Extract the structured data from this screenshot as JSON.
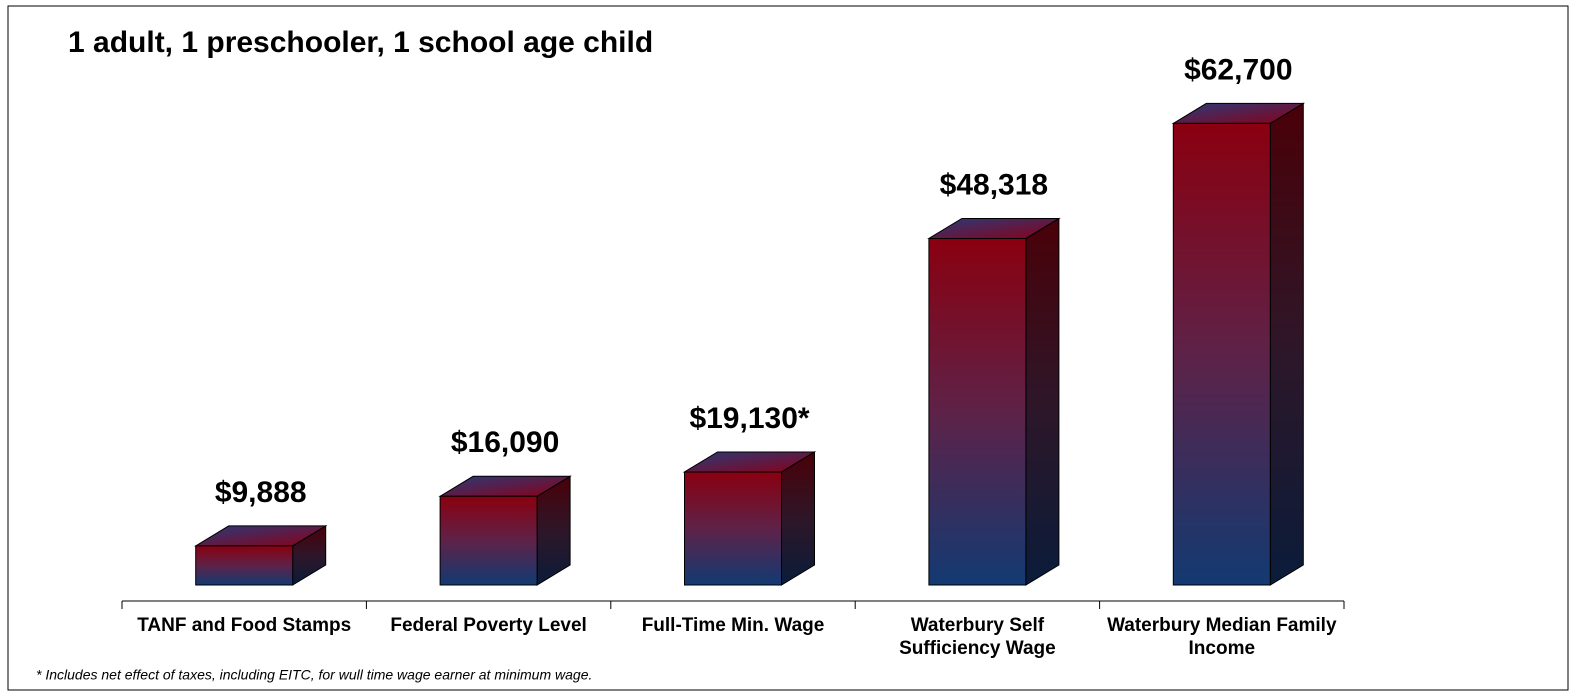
{
  "chart_data": {
    "type": "bar3d",
    "title": "1 adult, 1 preschooler, 1 school age child",
    "categories": [
      "TANF and Food Stamps",
      "Federal Poverty Level",
      "Full-Time Min. Wage",
      "Waterbury Self Sufficiency Wage",
      "Waterbury Median Family Income"
    ],
    "values": [
      9888,
      16090,
      19130,
      48318,
      62700
    ],
    "value_labels": [
      "$9,888",
      "$16,090",
      "$19,130*",
      "$48,318",
      "$62,700"
    ],
    "ylim": [
      5000,
      68000
    ],
    "footnote": "* Includes net effect of taxes, including EITC, for wull time wage earner at minimum wage."
  }
}
